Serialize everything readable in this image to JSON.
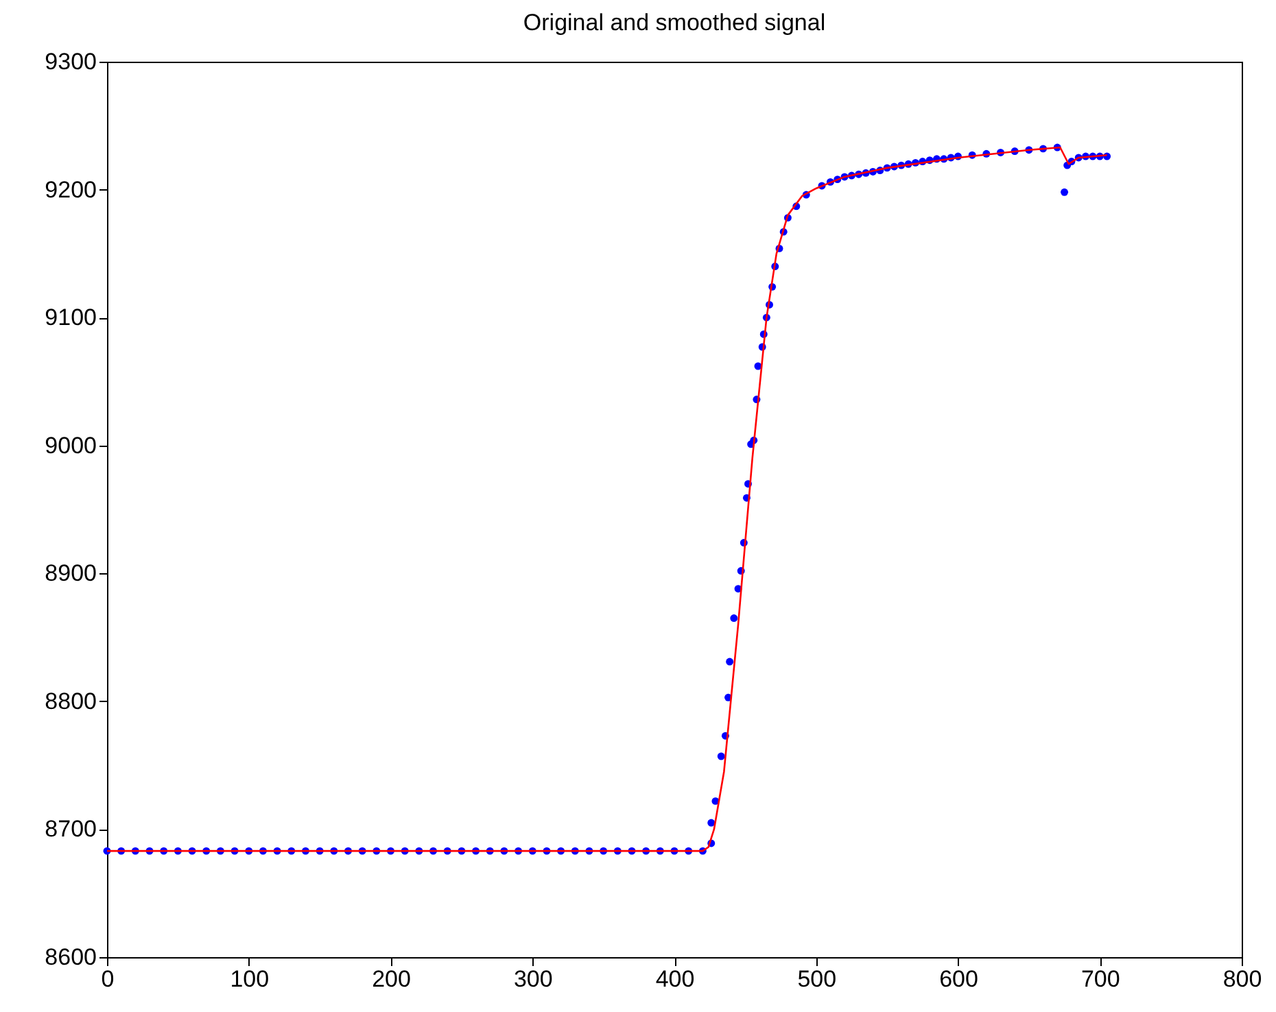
{
  "chart_data": {
    "type": "scatter",
    "title": "Original and smoothed signal",
    "xlim": [
      0,
      800
    ],
    "xticks": [
      0,
      100,
      200,
      300,
      400,
      500,
      600,
      700,
      800
    ],
    "ylim": [
      8600,
      9300
    ],
    "yticks": [
      8600,
      8700,
      8800,
      8900,
      9000,
      9100,
      9200,
      9300
    ],
    "grid": false,
    "series": [
      {
        "type": "scatter",
        "marker": "circle",
        "color": "#0000ff",
        "x": [
          0,
          10,
          20,
          30,
          40,
          50,
          60,
          70,
          80,
          90,
          100,
          110,
          120,
          130,
          140,
          150,
          160,
          170,
          180,
          190,
          200,
          210,
          220,
          230,
          240,
          250,
          260,
          270,
          280,
          290,
          300,
          310,
          320,
          330,
          340,
          350,
          360,
          370,
          380,
          390,
          400,
          410,
          420,
          426,
          426,
          429,
          433,
          436,
          438,
          439,
          442,
          445,
          447,
          449,
          451,
          452,
          454,
          456,
          458,
          459,
          462,
          463,
          465,
          467,
          469,
          471,
          474,
          477,
          480,
          486,
          493,
          504,
          510,
          515,
          520,
          525,
          530,
          535,
          540,
          545,
          550,
          555,
          560,
          565,
          570,
          575,
          580,
          585,
          590,
          595,
          600,
          610,
          620,
          630,
          640,
          650,
          660,
          670,
          675,
          677,
          680,
          685,
          690,
          695,
          700,
          705
        ],
        "values": [
          8683,
          8683,
          8683,
          8683,
          8683,
          8683,
          8683,
          8683,
          8683,
          8683,
          8683,
          8683,
          8683,
          8683,
          8683,
          8683,
          8683,
          8683,
          8683,
          8683,
          8683,
          8683,
          8683,
          8683,
          8683,
          8683,
          8683,
          8683,
          8683,
          8683,
          8683,
          8683,
          8683,
          8683,
          8683,
          8683,
          8683,
          8683,
          8683,
          8683,
          8683,
          8683,
          8683,
          8689,
          8705,
          8722,
          8757,
          8773,
          8803,
          8831,
          8865,
          8888,
          8902,
          8924,
          8959,
          8970,
          9001,
          9004,
          9036,
          9062,
          9077,
          9087,
          9100,
          9110,
          9124,
          9140,
          9154,
          9167,
          9178,
          9187,
          9196,
          9203,
          9206,
          9208,
          9210,
          9211,
          9212,
          9213,
          9214,
          9215,
          9217,
          9218,
          9219,
          9220,
          9221,
          9222,
          9223,
          9224,
          9224,
          9225,
          9226,
          9227,
          9228,
          9229,
          9230,
          9231,
          9232,
          9233,
          9198,
          9219,
          9222,
          9225,
          9226,
          9226,
          9226,
          9226
        ]
      },
      {
        "type": "line",
        "line_style": "solid",
        "color": "#ff0000",
        "x": [
          0,
          420,
          424,
          428,
          435,
          445,
          455,
          465,
          472,
          480,
          490,
          500,
          520,
          550,
          600,
          650,
          672,
          678,
          685,
          705
        ],
        "values": [
          8683,
          8683,
          8686,
          8700,
          8745,
          8860,
          8990,
          9100,
          9150,
          9180,
          9195,
          9201,
          9210,
          9217,
          9225,
          9231,
          9233,
          9220,
          9225,
          9227
        ]
      }
    ]
  }
}
